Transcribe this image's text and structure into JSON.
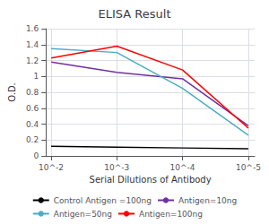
{
  "chart_data": {
    "type": "line",
    "title": "ELISA Result",
    "xlabel": "Serial Dilutions of Antibody",
    "ylabel": "O.D.",
    "x": [
      0.01,
      0.001,
      0.0001,
      1e-05
    ],
    "series": [
      {
        "name": "Control Antigen =100ng",
        "color": "#000000",
        "values": [
          0.12,
          0.11,
          0.1,
          0.09
        ]
      },
      {
        "name": "Antigen=10ng",
        "color": "#7030A0",
        "values": [
          1.18,
          1.05,
          0.97,
          0.38
        ]
      },
      {
        "name": "Antigen=50ng",
        "color": "#4BACC6",
        "values": [
          1.35,
          1.3,
          0.85,
          0.26
        ]
      },
      {
        "name": "Antigen=100ng",
        "color": "#FF0000",
        "values": [
          1.23,
          1.38,
          1.08,
          0.35
        ]
      }
    ],
    "log": "x",
    "xlim": [
      0.012,
      8e-06
    ],
    "xticks": [
      {
        "value": 0.01,
        "label": "10^-2"
      },
      {
        "value": 0.001,
        "label": "10^-3"
      },
      {
        "value": 0.0001,
        "label": "10^-4"
      },
      {
        "value": 1e-05,
        "label": "10^-5"
      }
    ],
    "ylim": [
      0,
      1.6
    ],
    "yticks": [
      0,
      0.2,
      0.4,
      0.6,
      0.8,
      1,
      1.2,
      1.4,
      1.6
    ],
    "grid": true,
    "legend": "bottom"
  }
}
